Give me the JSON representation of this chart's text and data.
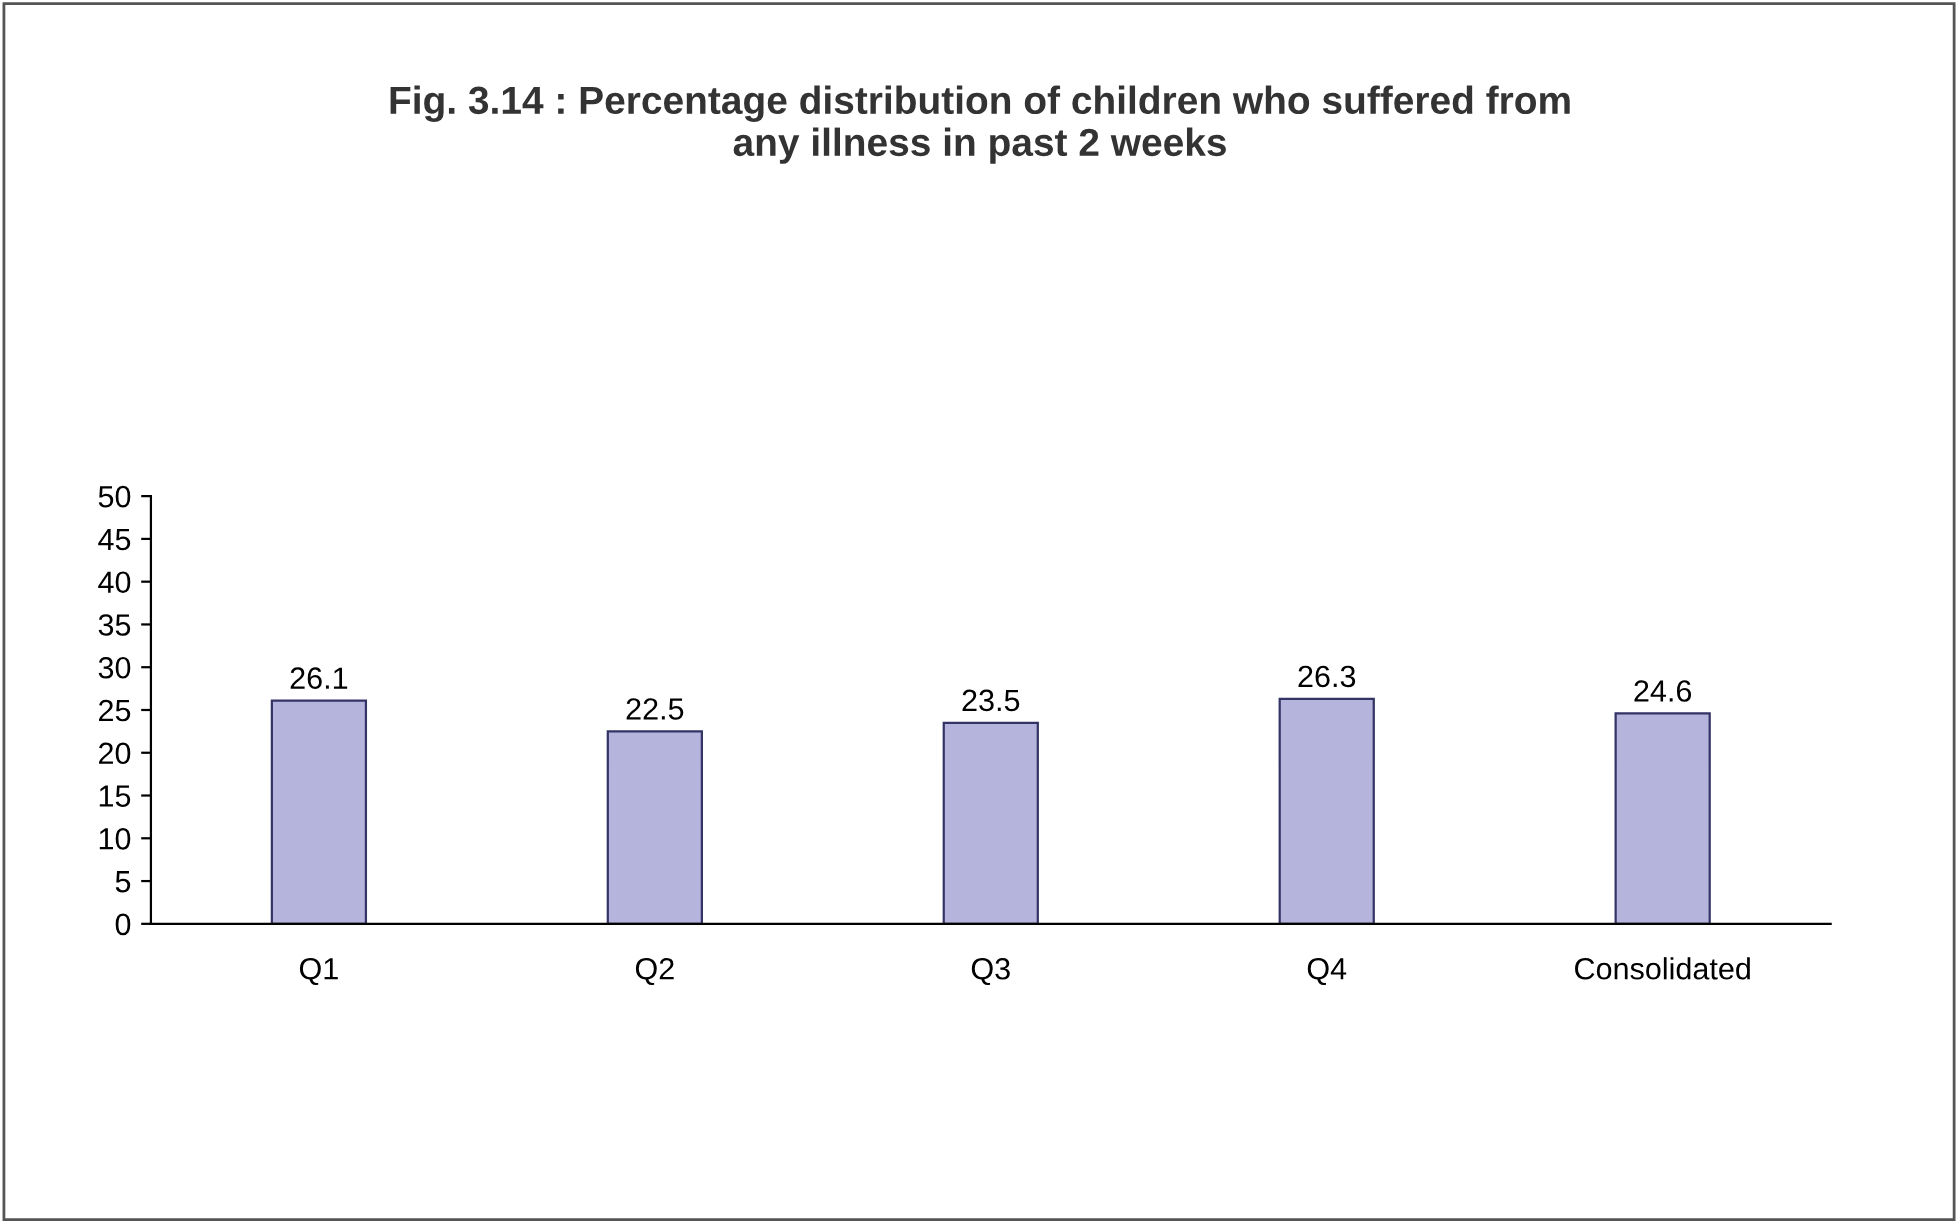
{
  "chart_data": {
    "type": "bar",
    "title": "Fig. 3.14 : Percentage distribution of children who suffered from\nany illness in past 2 weeks",
    "categories": [
      "Q1",
      "Q2",
      "Q3",
      "Q4",
      "Consolidated"
    ],
    "values": [
      26.1,
      22.5,
      23.5,
      26.3,
      24.6
    ],
    "color": "#b4b4dc",
    "ylim": [
      0,
      50
    ],
    "yticks": [
      0,
      5,
      10,
      15,
      20,
      25,
      30,
      35,
      40,
      45,
      50
    ],
    "data_labels": true,
    "grid": false
  }
}
